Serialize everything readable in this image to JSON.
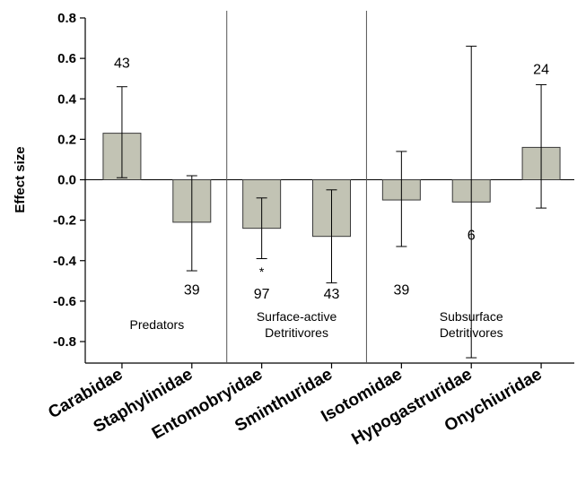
{
  "chart_data": {
    "type": "bar",
    "ylabel": "Effect size",
    "ylim": [
      -0.9,
      0.8
    ],
    "yticks": [
      "0.8",
      "0.6",
      "0.4",
      "0.2",
      "0.0",
      "-0.2",
      "-0.4",
      "-0.6",
      "-0.8"
    ],
    "categories": [
      "Carabidae",
      "Staphylinidae",
      "Entomobryidae",
      "Sminthuridae",
      "Isotomidae",
      "Hypogastruridae",
      "Onychiuridae"
    ],
    "values": [
      0.23,
      -0.21,
      -0.24,
      -0.28,
      -0.1,
      -0.11,
      0.16
    ],
    "err_low": [
      0.01,
      -0.45,
      -0.39,
      -0.51,
      -0.33,
      -0.88,
      -0.14
    ],
    "err_high": [
      0.46,
      0.02,
      -0.09,
      -0.05,
      0.14,
      0.66,
      0.47
    ],
    "n_labels": [
      {
        "text": "43",
        "y": 0.58
      },
      {
        "text": "39",
        "y": -0.54
      },
      {
        "text": "97",
        "y": -0.56
      },
      {
        "text": "43",
        "y": -0.56
      },
      {
        "text": "39",
        "y": -0.54
      },
      {
        "text": "6",
        "y": -0.27
      },
      {
        "text": "24",
        "y": 0.55
      }
    ],
    "significance": [
      {
        "category": "Entomobryidae",
        "text": "*",
        "y": -0.45
      }
    ],
    "groups": [
      {
        "label_lines": [
          "Predators"
        ],
        "y": -0.72
      },
      {
        "label_lines": [
          "Surface-active",
          "Detritivores"
        ],
        "y": -0.72
      },
      {
        "label_lines": [
          "Subsurface",
          "Detritivores"
        ],
        "y": -0.72
      }
    ],
    "group_dividers_after": [
      1,
      3
    ],
    "colors": {
      "bar_fill": "#c2c3b4",
      "bar_stroke": "#3a3a3a",
      "axis": "#000000"
    }
  }
}
